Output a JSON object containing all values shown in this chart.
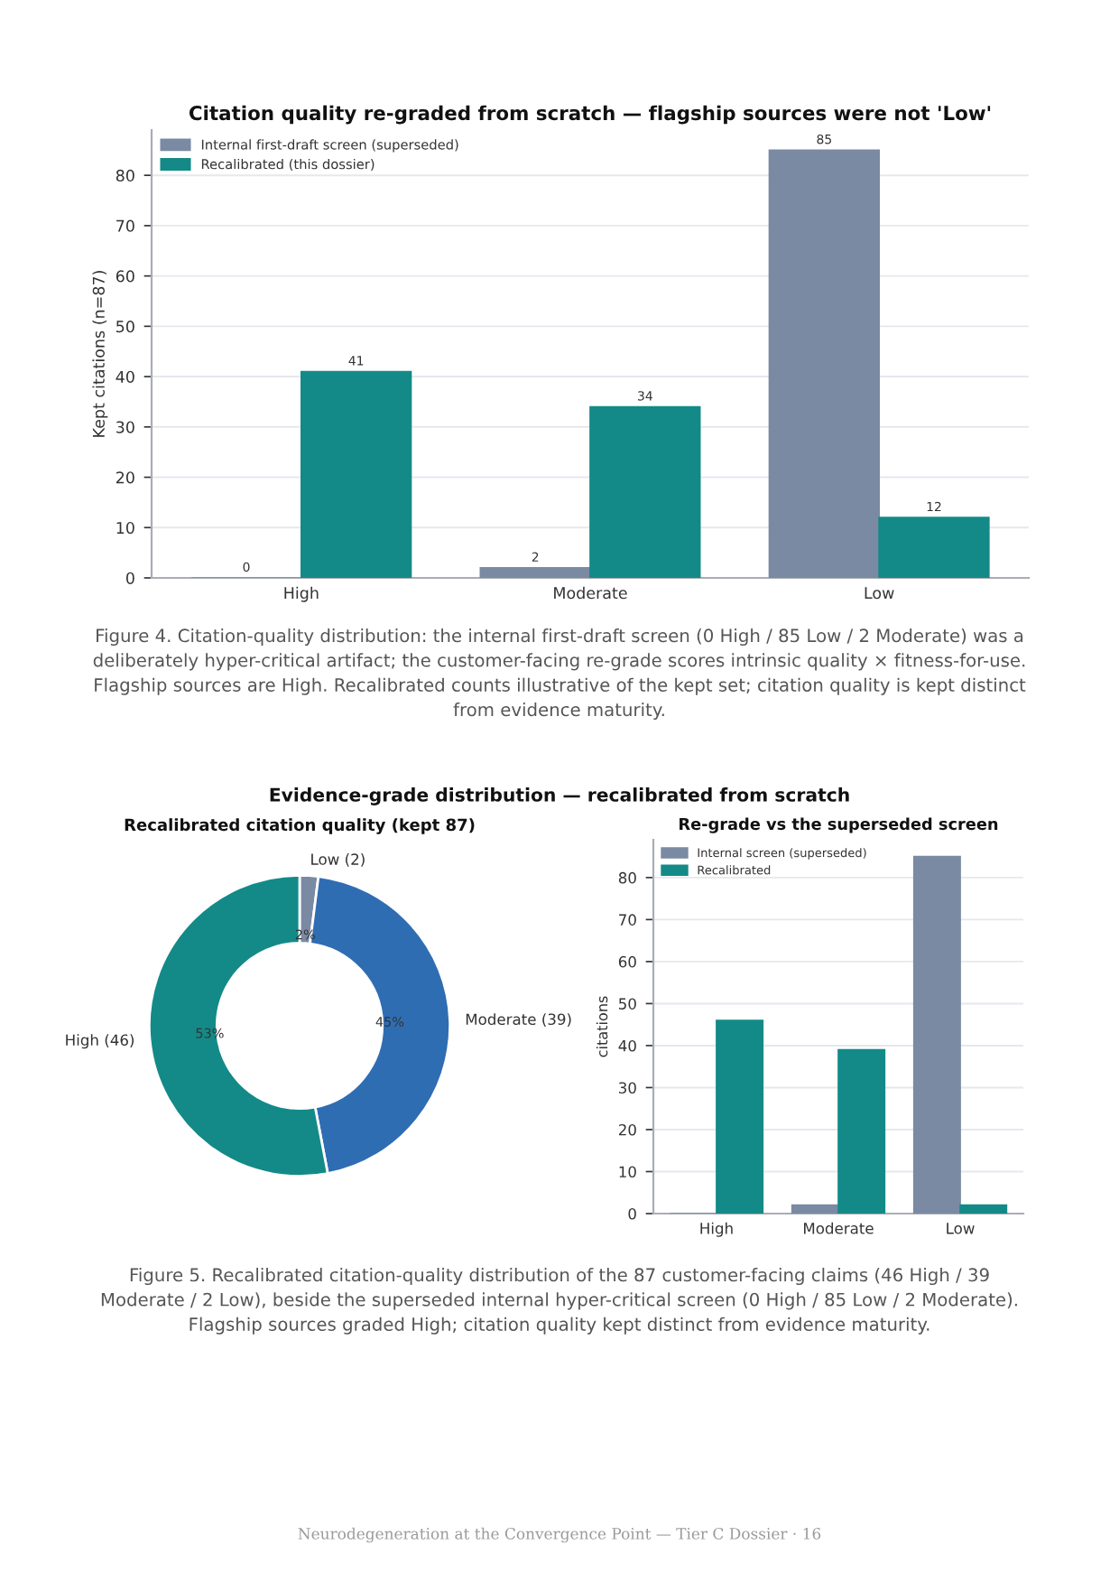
{
  "chart_data": [
    {
      "type": "bar",
      "title": "Citation quality re-graded from scratch — flagship sources were not 'Low'",
      "ylabel": "Kept citations (n=87)",
      "categories": [
        "High",
        "Moderate",
        "Low"
      ],
      "series": [
        {
          "name": "Internal first-draft screen (superseded)",
          "color": "#7b8aa3",
          "values": [
            0,
            2,
            85
          ]
        },
        {
          "name": "Recalibrated (this dossier)",
          "color": "#138a88",
          "values": [
            41,
            34,
            12
          ]
        }
      ],
      "ylim": [
        0,
        89
      ],
      "yticks": [
        0,
        10,
        20,
        30,
        40,
        50,
        60,
        70,
        80
      ],
      "grid": "y",
      "legend": "top left",
      "data_labels": true,
      "annotations": [
        "Figure 4. Citation-quality distribution: the internal first-draft screen (0 High / 85 Low / 2 Moderate) was a deliberately hyper-critical artifact; the customer-facing re-grade scores intrinsic quality × fitness-for-use. Flagship sources are High. Recalibrated counts illustrative of the kept set; citation quality is kept distinct from evidence maturity."
      ]
    },
    {
      "type": "donut",
      "title": "Recalibrated citation quality (kept 87)",
      "categories": [
        "Low (2)",
        "Moderate (39)",
        "High (46)"
      ],
      "values": [
        2,
        45,
        53
      ],
      "colors": [
        "#7b8aa3",
        "#2f6db3",
        "#138a88"
      ],
      "value_labels": [
        "2%",
        "45%",
        "53%"
      ],
      "annotations": [
        "Evidence-grade distribution — recalibrated from scratch",
        "Figure 5. Recalibrated citation-quality distribution of the 87 customer-facing claims (46 High / 39 Moderate / 2 Low), beside the superseded internal hyper-critical screen (0 High / 85 Low / 2 Moderate). Flagship sources graded High; citation quality kept distinct from evidence maturity."
      ]
    },
    {
      "type": "bar",
      "title": "Re-grade vs the superseded screen",
      "ylabel": "citations",
      "categories": [
        "High",
        "Moderate",
        "Low"
      ],
      "series": [
        {
          "name": "Internal screen (superseded)",
          "color": "#7b8aa3",
          "values": [
            0,
            2,
            85
          ]
        },
        {
          "name": "Recalibrated",
          "color": "#138a88",
          "values": [
            46,
            39,
            2
          ]
        }
      ],
      "ylim": [
        0,
        89
      ],
      "yticks": [
        0,
        10,
        20,
        30,
        40,
        50,
        60,
        70,
        80
      ],
      "grid": "y",
      "legend": "top left",
      "annotations": [
        "Neurodegeneration at the Convergence Point — Tier C Dossier · 16"
      ]
    }
  ]
}
